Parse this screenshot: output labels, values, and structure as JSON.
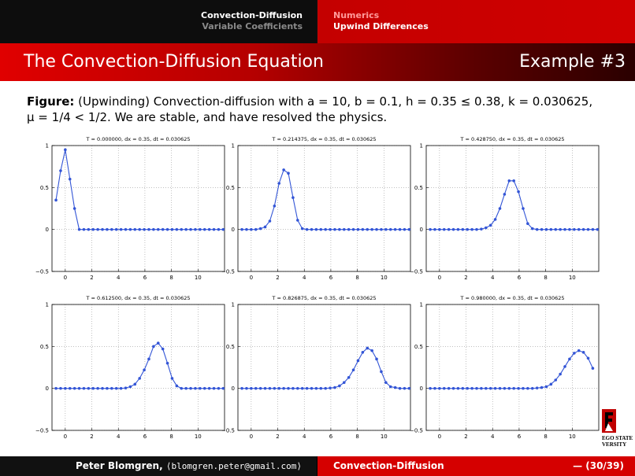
{
  "nav": {
    "section_line1": "Convection-Diffusion",
    "section_line2": "Variable Coefficients",
    "subsection_line1": "Numerics",
    "subsection_line2": "Upwind Differences"
  },
  "frame": {
    "title": "The Convection-Diffusion Equation",
    "example": "Example #3"
  },
  "caption": {
    "label": "Figure:",
    "line1": "(Upwinding) Convection-diffusion with a = 10, b = 0.1, h = 0.35 ≤ 0.38, k = 0.030625,",
    "line2": "μ = 1/4 < 1/2. We are stable, and have resolved the physics."
  },
  "footer": {
    "author": "Peter Blomgren,",
    "email": "⟨blomgren.peter@gmail.com⟩",
    "short_title": "Convection-Diffusion",
    "page": "— (30/39)"
  },
  "logo": {
    "line1": "EGO STATE",
    "line2": "VERSITY"
  },
  "colors": {
    "line": "#3355d6",
    "nav_red": "#d00000",
    "title_red": "#e00000"
  },
  "chart_data": [
    {
      "type": "line",
      "title": "T = 0.000000,  dx = 0.35,  dt = 0.030625",
      "xlim": [
        -1,
        12
      ],
      "ylim": [
        -0.5,
        1
      ],
      "xticks": [
        "0",
        "2",
        "4",
        "6",
        "8",
        "10"
      ],
      "yticks": [
        "-0.5",
        "0",
        "0.5",
        "1"
      ],
      "grid": true,
      "x_start": -1.05,
      "dx": 0.35,
      "values": [
        0,
        0.35,
        0.7,
        0.95,
        0.6,
        0.25,
        0,
        0,
        0,
        0,
        0,
        0,
        0,
        0,
        0,
        0,
        0,
        0,
        0,
        0,
        0,
        0,
        0,
        0,
        0,
        0,
        0,
        0,
        0,
        0,
        0,
        0,
        0,
        0,
        0,
        0,
        0,
        0
      ]
    },
    {
      "type": "line",
      "title": "T = 0.214375,  dx = 0.35,  dt = 0.030625",
      "xlim": [
        -1,
        12
      ],
      "ylim": [
        -0.5,
        1
      ],
      "xticks": [
        "0",
        "2",
        "4",
        "6",
        "8",
        "10"
      ],
      "yticks": [
        "-0.5",
        "0",
        "0.5",
        "1"
      ],
      "grid": true,
      "x_start": -1.05,
      "dx": 0.35,
      "values": [
        0,
        0,
        0,
        0,
        0,
        0.01,
        0.03,
        0.1,
        0.28,
        0.55,
        0.71,
        0.67,
        0.38,
        0.11,
        0.01,
        0,
        0,
        0,
        0,
        0,
        0,
        0,
        0,
        0,
        0,
        0,
        0,
        0,
        0,
        0,
        0,
        0,
        0,
        0,
        0,
        0,
        0,
        0
      ]
    },
    {
      "type": "line",
      "title": "T = 0.428750,  dx = 0.35,  dt = 0.030625",
      "xlim": [
        -1,
        12
      ],
      "ylim": [
        -0.5,
        1
      ],
      "xticks": [
        "0",
        "2",
        "4",
        "6",
        "8",
        "10"
      ],
      "yticks": [
        "-0.5",
        "0",
        "0.5",
        "1"
      ],
      "grid": true,
      "x_start": -1.05,
      "dx": 0.35,
      "values": [
        0,
        0,
        0,
        0,
        0,
        0,
        0,
        0,
        0,
        0,
        0,
        0,
        0.005,
        0.02,
        0.05,
        0.12,
        0.25,
        0.42,
        0.58,
        0.58,
        0.45,
        0.25,
        0.07,
        0.01,
        0,
        0,
        0,
        0,
        0,
        0,
        0,
        0,
        0,
        0,
        0,
        0,
        0,
        0
      ]
    },
    {
      "type": "line",
      "title": "T = 0.612500,  dx = 0.35,  dt = 0.030625",
      "xlim": [
        -1,
        12
      ],
      "ylim": [
        -0.5,
        1
      ],
      "xticks": [
        "0",
        "2",
        "4",
        "6",
        "8",
        "10"
      ],
      "yticks": [
        "-0.5",
        "0",
        "0.5",
        "1"
      ],
      "grid": true,
      "x_start": -1.05,
      "dx": 0.35,
      "values": [
        0,
        0,
        0,
        0,
        0,
        0,
        0,
        0,
        0,
        0,
        0,
        0,
        0,
        0,
        0,
        0,
        0.005,
        0.02,
        0.05,
        0.12,
        0.22,
        0.35,
        0.5,
        0.54,
        0.47,
        0.3,
        0.12,
        0.03,
        0,
        0,
        0,
        0,
        0,
        0,
        0,
        0,
        0,
        0
      ]
    },
    {
      "type": "line",
      "title": "T = 0.826875,  dx = 0.35,  dt = 0.030625",
      "xlim": [
        -1,
        12
      ],
      "ylim": [
        -0.5,
        1
      ],
      "xticks": [
        "0",
        "2",
        "4",
        "6",
        "8",
        "10"
      ],
      "yticks": [
        "-0.5",
        "0",
        "0.5",
        "1"
      ],
      "grid": true,
      "x_start": -1.05,
      "dx": 0.35,
      "values": [
        0,
        0,
        0,
        0,
        0,
        0,
        0,
        0,
        0,
        0,
        0,
        0,
        0,
        0,
        0,
        0,
        0,
        0,
        0,
        0,
        0.005,
        0.01,
        0.03,
        0.07,
        0.13,
        0.22,
        0.33,
        0.43,
        0.48,
        0.45,
        0.35,
        0.2,
        0.07,
        0.02,
        0.01,
        0,
        0,
        0
      ]
    },
    {
      "type": "line",
      "title": "T = 0.980000,  dx = 0.35,  dt = 0.030625",
      "xlim": [
        -1,
        12
      ],
      "ylim": [
        -0.5,
        1
      ],
      "xticks": [
        "0",
        "2",
        "4",
        "6",
        "8",
        "10"
      ],
      "yticks": [
        "-0.5",
        "0",
        "0.5",
        "1"
      ],
      "grid": true,
      "x_start": -1.05,
      "dx": 0.35,
      "values": [
        0,
        0,
        0,
        0,
        0,
        0,
        0,
        0,
        0,
        0,
        0,
        0,
        0,
        0,
        0,
        0,
        0,
        0,
        0,
        0,
        0,
        0,
        0,
        0,
        0.005,
        0.01,
        0.02,
        0.05,
        0.1,
        0.17,
        0.26,
        0.35,
        0.42,
        0.45,
        0.43,
        0.36,
        0.24
      ]
    }
  ]
}
